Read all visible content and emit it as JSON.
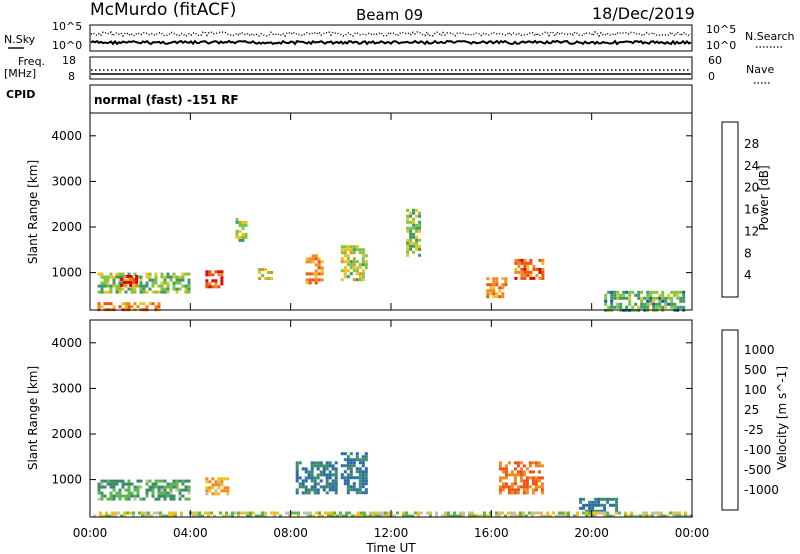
{
  "header": {
    "station": "McMurdo (fitACF)",
    "beam": "Beam 09",
    "date": "18/Dec/2019"
  },
  "noise_panel": {
    "left_label": "N.Sky",
    "right_label": "N.Search",
    "left_ticks": [
      "10^5",
      "10^0"
    ],
    "right_ticks": [
      "10^5",
      "10^0"
    ]
  },
  "freq_panel": {
    "left_label_1": "Freq.",
    "left_label_2": "[MHz]",
    "right_label": "Nave",
    "left_ticks": [
      "18",
      "8"
    ],
    "right_ticks": [
      "60",
      "0"
    ]
  },
  "cpid": {
    "label": "CPID",
    "text": "normal (fast) -151 RF"
  },
  "power_panel": {
    "ylabel": "Slant Range [km]",
    "yticks": [
      "1000",
      "2000",
      "3000",
      "4000"
    ],
    "colorbar_label": "Power [dB]",
    "colorbar_ticks": [
      "4",
      "8",
      "12",
      "16",
      "20",
      "24",
      "28"
    ],
    "colors": [
      "#0000ff",
      "#2a52a8",
      "#3c9a6a",
      "#7cc443",
      "#f0c020",
      "#f08a20",
      "#f05010",
      "#e00000"
    ]
  },
  "velocity_panel": {
    "ylabel": "Slant Range [km]",
    "yticks": [
      "1000",
      "2000",
      "3000",
      "4000"
    ],
    "colorbar_label": "Velocity [m s^-1]",
    "colorbar_ticks": [
      "1000",
      "500",
      "100",
      "25",
      "-25",
      "-100",
      "-500",
      "-1000"
    ],
    "colors": [
      "#1f3fa8",
      "#2a6aa8",
      "#3c8a6a",
      "#5ab84a",
      "#c0c0b8",
      "#f0c020",
      "#f08a20",
      "#f05010",
      "#e00000"
    ]
  },
  "xaxis": {
    "label": "Time UT",
    "ticks": [
      "00:00",
      "04:00",
      "08:00",
      "12:00",
      "16:00",
      "20:00",
      "00:00"
    ]
  },
  "chart_data": {
    "type": "heatmap",
    "x_range_hours": [
      0,
      24
    ],
    "y_range_km": [
      180,
      4500
    ],
    "features_power": [
      {
        "t": [
          0.3,
          4.0
        ],
        "r": [
          600,
          1000
        ],
        "db": 14
      },
      {
        "t": [
          1.2,
          1.8
        ],
        "r": [
          750,
          950
        ],
        "db": 26
      },
      {
        "t": [
          0.3,
          2.8
        ],
        "r": [
          180,
          350
        ],
        "db": 22
      },
      {
        "t": [
          4.6,
          5.3
        ],
        "r": [
          700,
          1050
        ],
        "db": 26
      },
      {
        "t": [
          5.8,
          6.2
        ],
        "r": [
          1700,
          2200
        ],
        "db": 14
      },
      {
        "t": [
          6.7,
          7.2
        ],
        "r": [
          850,
          1100
        ],
        "db": 18
      },
      {
        "t": [
          8.6,
          9.3
        ],
        "r": [
          800,
          1400
        ],
        "db": 22
      },
      {
        "t": [
          10.0,
          11.0
        ],
        "r": [
          850,
          1600
        ],
        "db": 16
      },
      {
        "t": [
          12.6,
          13.1
        ],
        "r": [
          1400,
          2400
        ],
        "db": 14
      },
      {
        "t": [
          15.8,
          16.6
        ],
        "r": [
          500,
          900
        ],
        "db": 22
      },
      {
        "t": [
          16.8,
          18.0
        ],
        "r": [
          900,
          1300
        ],
        "db": 24
      },
      {
        "t": [
          20.5,
          23.7
        ],
        "r": [
          200,
          600
        ],
        "db": 12
      }
    ],
    "features_velocity": [
      {
        "t": [
          0.3,
          4.0
        ],
        "r": [
          600,
          1000
        ],
        "v": 100
      },
      {
        "t": [
          4.6,
          5.5
        ],
        "r": [
          700,
          1050
        ],
        "v": -100
      },
      {
        "t": [
          8.2,
          9.8
        ],
        "r": [
          700,
          1400
        ],
        "v": 500
      },
      {
        "t": [
          10.0,
          11.0
        ],
        "r": [
          700,
          1600
        ],
        "v": 500
      },
      {
        "t": [
          16.3,
          18.0
        ],
        "r": [
          700,
          1400
        ],
        "v": -500
      },
      {
        "t": [
          19.5,
          21.0
        ],
        "r": [
          300,
          600
        ],
        "v": 500
      },
      {
        "t": [
          0.0,
          24.0
        ],
        "r": [
          180,
          300
        ],
        "v": 0
      }
    ]
  }
}
